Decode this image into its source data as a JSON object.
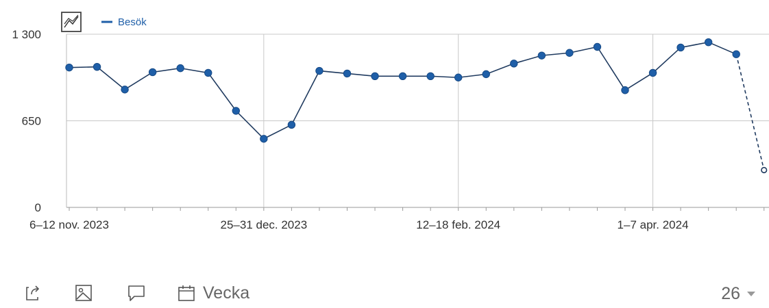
{
  "chart_data": {
    "type": "line",
    "legend": {
      "label": "Besök",
      "color": "#1f5fa8",
      "placement": "top-left"
    },
    "toggle_icon": "line-chart-toggle-icon",
    "y_ticks": [
      {
        "value": 1300,
        "label": "1 300"
      },
      {
        "value": 650,
        "label": "650"
      },
      {
        "value": 0,
        "label": "0"
      }
    ],
    "ylim": [
      0,
      1300
    ],
    "grid": true,
    "x_tick_labels": [
      {
        "index": 0,
        "label": "6–12 nov. 2023"
      },
      {
        "index": 7,
        "label": "25–31 dec. 2023"
      },
      {
        "index": 14,
        "label": "12–18 feb. 2024"
      },
      {
        "index": 21,
        "label": "1–7 apr. 2024"
      }
    ],
    "series": [
      {
        "name": "Besök",
        "color": "#1f5fa8",
        "values": [
          1050,
          1055,
          885,
          1015,
          1045,
          1010,
          725,
          515,
          620,
          1025,
          1005,
          985,
          985,
          985,
          975,
          1000,
          1080,
          1140,
          1160,
          1205,
          880,
          1010,
          1200,
          1240,
          1150
        ],
        "partial_value": 280
      }
    ]
  },
  "toolbar": {
    "share_icon": "share-icon",
    "image_icon": "image-icon",
    "comment_icon": "comment-icon",
    "calendar_icon": "calendar-icon",
    "period_label": "Vecka",
    "count_value": "26"
  }
}
